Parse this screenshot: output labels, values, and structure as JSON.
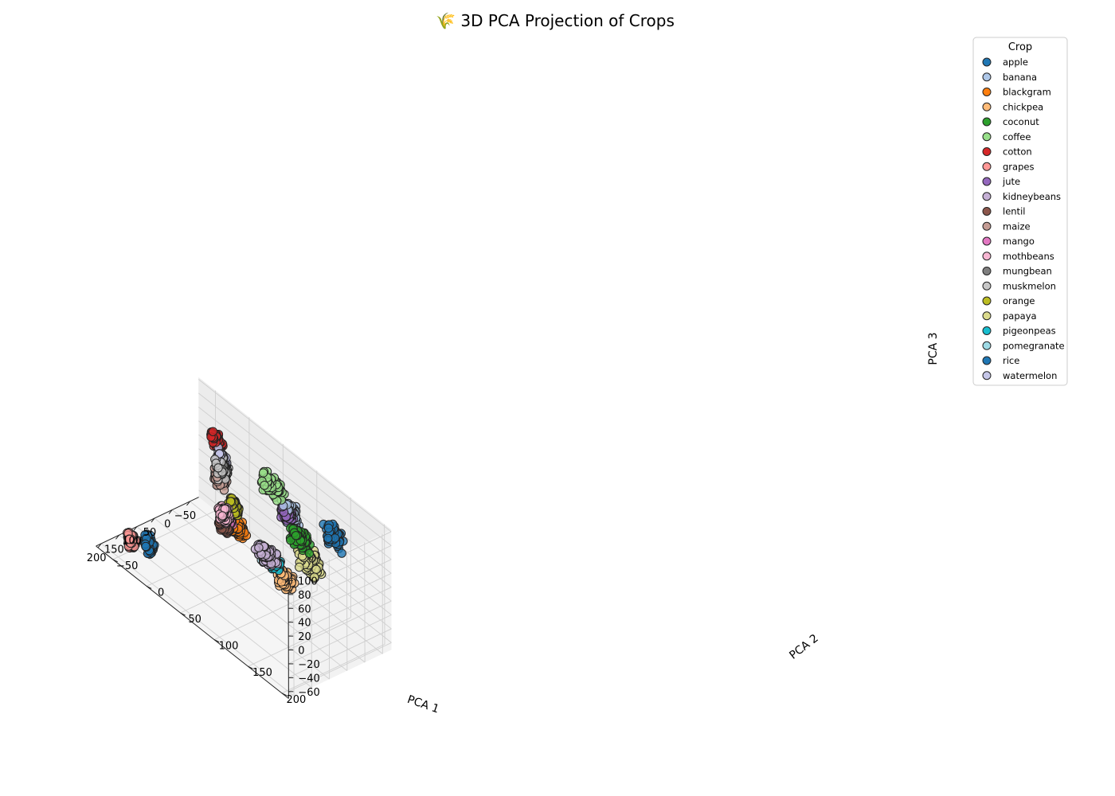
{
  "chart_data": {
    "type": "scatter",
    "title": "🌾 3D PCA Projection of Crops",
    "xlabel": "PCA 1",
    "ylabel": "PCA 2",
    "zlabel": "PCA 3",
    "xlim": [
      -75,
      215
    ],
    "ylim": [
      -75,
      210
    ],
    "zlim": [
      -70,
      103
    ],
    "x_ticks": [
      "−50",
      "0",
      "50",
      "100",
      "150",
      "200"
    ],
    "y_ticks": [
      "−50",
      "0",
      "50",
      "100",
      "150",
      "200"
    ],
    "z_ticks": [
      "−60",
      "−40",
      "−20",
      "0",
      "20",
      "40",
      "60",
      "80",
      "100"
    ],
    "grid": true,
    "legend": {
      "title": "Crop",
      "position": "top-right"
    },
    "series": [
      {
        "name": "apple",
        "color": "#1f77b4",
        "center": [
          -35,
          145,
          55
        ],
        "spread": [
          6,
          8,
          12
        ]
      },
      {
        "name": "banana",
        "color": "#aec7e8",
        "center": [
          -30,
          85,
          40
        ],
        "spread": [
          6,
          8,
          10
        ]
      },
      {
        "name": "blackgram",
        "color": "#ff7f0e",
        "center": [
          -35,
          5,
          -45
        ],
        "spread": [
          5,
          6,
          8
        ]
      },
      {
        "name": "chickpea",
        "color": "#ffbb78",
        "center": [
          -5,
          90,
          -45
        ],
        "spread": [
          5,
          8,
          10
        ]
      },
      {
        "name": "coconut",
        "color": "#2ca02c",
        "center": [
          -45,
          90,
          5
        ],
        "spread": [
          6,
          10,
          10
        ]
      },
      {
        "name": "coffee",
        "color": "#98df8a",
        "center": [
          -45,
          50,
          50
        ],
        "spread": [
          8,
          12,
          10
        ]
      },
      {
        "name": "cotton",
        "color": "#d62728",
        "center": [
          -40,
          -30,
          55
        ],
        "spread": [
          5,
          6,
          8
        ]
      },
      {
        "name": "grapes",
        "color": "#ff9896",
        "center": [
          180,
          -40,
          -45
        ],
        "spread": [
          4,
          5,
          8
        ]
      },
      {
        "name": "jute",
        "color": "#9467bd",
        "center": [
          -30,
          80,
          35
        ],
        "spread": [
          5,
          6,
          6
        ]
      },
      {
        "name": "kidneybeans",
        "color": "#c5b0d5",
        "center": [
          -45,
          40,
          -55
        ],
        "spread": [
          6,
          10,
          8
        ]
      },
      {
        "name": "lentil",
        "color": "#8c564b",
        "center": [
          -40,
          -20,
          -60
        ],
        "spread": [
          5,
          6,
          7
        ]
      },
      {
        "name": "maize",
        "color": "#c49c94",
        "center": [
          -40,
          -25,
          5
        ],
        "spread": [
          5,
          6,
          10
        ]
      },
      {
        "name": "mango",
        "color": "#e377c2",
        "center": [
          -40,
          -15,
          -45
        ],
        "spread": [
          5,
          6,
          6
        ]
      },
      {
        "name": "mothbeans",
        "color": "#f7b6d2",
        "center": [
          -60,
          -30,
          -55
        ],
        "spread": [
          5,
          6,
          8
        ]
      },
      {
        "name": "mungbean",
        "color": "#7f7f7f",
        "center": [
          -45,
          -25,
          15
        ],
        "spread": [
          4,
          5,
          6
        ]
      },
      {
        "name": "muskmelon",
        "color": "#c7c7c7",
        "center": [
          -45,
          -25,
          15
        ],
        "spread": [
          5,
          7,
          12
        ]
      },
      {
        "name": "orange",
        "color": "#bcbd22",
        "center": [
          -60,
          -15,
          -35
        ],
        "spread": [
          4,
          5,
          8
        ]
      },
      {
        "name": "papaya",
        "color": "#dbdb8d",
        "center": [
          -25,
          115,
          -5
        ],
        "spread": [
          6,
          12,
          15
        ]
      },
      {
        "name": "pigeonpeas",
        "color": "#17becf",
        "center": [
          -25,
          60,
          -45
        ],
        "spread": [
          6,
          8,
          8
        ]
      },
      {
        "name": "pomegranate",
        "color": "#9edae5",
        "center": [
          -25,
          50,
          -45
        ],
        "spread": [
          5,
          6,
          7
        ]
      },
      {
        "name": "rice",
        "color": "#1f77b4",
        "center": [
          180,
          -15,
          -30
        ],
        "spread": [
          4,
          5,
          10
        ]
      },
      {
        "name": "watermelon",
        "color": "#c5c6e8",
        "center": [
          -45,
          -25,
          30
        ],
        "spread": [
          4,
          5,
          8
        ]
      }
    ]
  }
}
